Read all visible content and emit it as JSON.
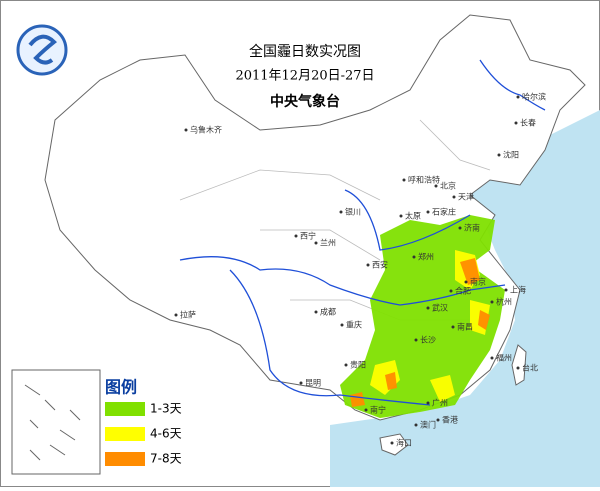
{
  "header": {
    "title": "全国霾日数实况图",
    "subtitle": "2011年12月20日-27日",
    "organization": "中央气象台"
  },
  "legend": {
    "title": "图例",
    "items": [
      {
        "label": "1-3天",
        "color": "#80e000"
      },
      {
        "label": "4-6天",
        "color": "#ffff00"
      },
      {
        "label": "7-8天",
        "color": "#ff8c00"
      }
    ]
  },
  "cities": [
    "乌鲁木齐",
    "哈尔滨",
    "长春",
    "沈阳",
    "呼和浩特",
    "北京",
    "天津",
    "银川",
    "太原",
    "石家庄",
    "济南",
    "西宁",
    "兰州",
    "西安",
    "郑州",
    "南京",
    "合肥",
    "上海",
    "杭州",
    "武汉",
    "成都",
    "重庆",
    "长沙",
    "南昌",
    "拉萨",
    "贵阳",
    "昆明",
    "福州",
    "台北",
    "南宁",
    "广州",
    "澳门",
    "香港",
    "海口"
  ]
}
